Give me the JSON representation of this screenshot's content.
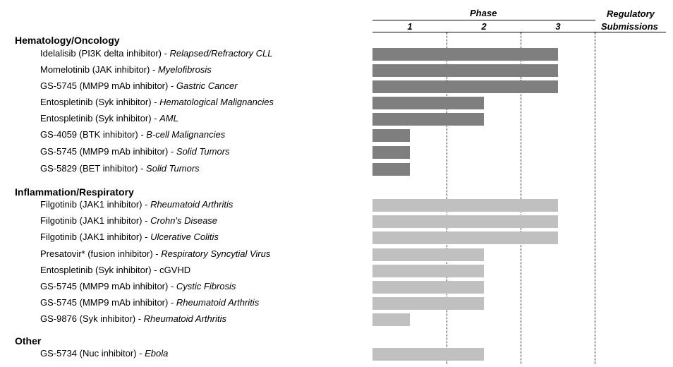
{
  "chart_data": {
    "type": "bar",
    "orientation": "horizontal",
    "header": {
      "phase_title": "Phase",
      "regulatory_title_line1": "Regulatory",
      "regulatory_title_line2": "Submissions"
    },
    "phase_ticks": [
      "1",
      "2",
      "3"
    ],
    "xlim": [
      0,
      4
    ],
    "colors": {
      "Hematology/Oncology": "#7f7f7f",
      "Inflammation/Respiratory": "#c0c0c0",
      "Other": "#c0c0c0"
    },
    "groups": [
      {
        "name": "Hematology/Oncology",
        "rows": [
          {
            "drug": "Idelalisib (PI3K delta inhibitor) - ",
            "indication": "Relapsed/Refractory CLL",
            "phase": 2.5
          },
          {
            "drug": "Momelotinib (JAK inhibitor) - ",
            "indication": "Myelofibrosis",
            "phase": 2.5
          },
          {
            "drug": "GS-5745 (MMP9 mAb inhibitor) - ",
            "indication": "Gastric Cancer",
            "phase": 2.5
          },
          {
            "drug": "Entospletinib (Syk inhibitor) - ",
            "indication": "Hematological Malignancies",
            "phase": 1.5
          },
          {
            "drug": "Entospletinib (Syk inhibitor) - ",
            "indication": "AML",
            "phase": 1.5
          },
          {
            "drug": "GS-4059 (BTK inhibitor) - ",
            "indication": "B-cell Malignancies",
            "phase": 0.5
          },
          {
            "drug": "GS-5745 (MMP9 mAb inhibitor) - ",
            "indication": "Solid Tumors",
            "phase": 0.5
          },
          {
            "drug": "GS-5829 (BET inhibitor) - ",
            "indication": "Solid Tumors",
            "phase": 0.5
          }
        ]
      },
      {
        "name": "Inflammation/Respiratory",
        "rows": [
          {
            "drug": "Filgotinib (JAK1 inhibitor) - ",
            "indication": "Rheumatoid Arthritis",
            "phase": 2.5
          },
          {
            "drug": "Filgotinib (JAK1 inhibitor) - ",
            "indication": "Crohn's Disease",
            "phase": 2.5
          },
          {
            "drug": "Filgotinib (JAK1 inhibitor) - ",
            "indication": "Ulcerative Colitis",
            "phase": 2.5
          },
          {
            "drug": "Presatovir* (fusion inhibitor) - ",
            "indication": "Respiratory Syncytial Virus",
            "phase": 1.5
          },
          {
            "drug": "Entospletinib (Syk inhibitor) - cGVHD",
            "indication": "",
            "phase": 1.5
          },
          {
            "drug": "GS-5745 (MMP9 mAb inhibitor) - ",
            "indication": "Cystic Fibrosis",
            "phase": 1.5
          },
          {
            "drug": "GS-5745 (MMP9 mAb inhibitor) - ",
            "indication": "Rheumatoid Arthritis",
            "phase": 1.5
          },
          {
            "drug": "GS-9876 (Syk inhibitor) - ",
            "indication": "Rheumatoid Arthritis",
            "phase": 0.5
          }
        ]
      },
      {
        "name": "Other",
        "rows": [
          {
            "drug": "GS-5734 (Nuc inhibitor) - ",
            "indication": "Ebola",
            "phase": 1.5
          }
        ]
      }
    ]
  }
}
